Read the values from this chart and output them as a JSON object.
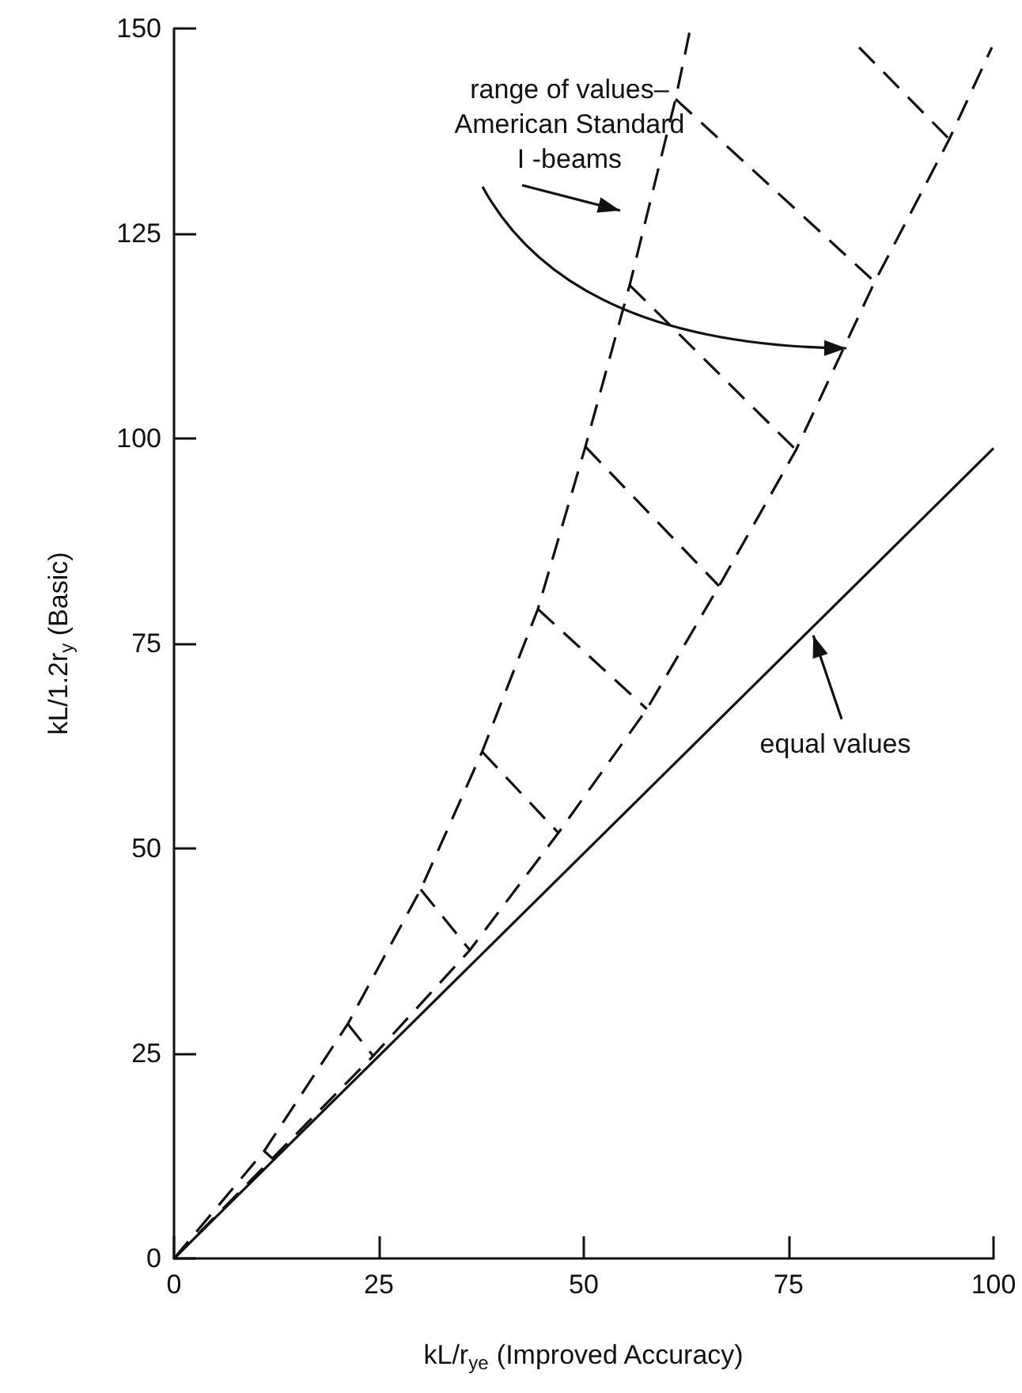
{
  "chart_data": {
    "type": "line",
    "xlabel": "kL/r$_{ye}$ (Improved Accuracy)",
    "ylabel": "kL/1.2r$_{y}$ (Basic)",
    "xlim": [
      0,
      100
    ],
    "xticks": [
      0,
      25,
      50,
      75,
      100
    ],
    "ylim": [
      0,
      150
    ],
    "yticks": [
      0,
      25,
      50,
      75,
      100,
      125,
      150
    ],
    "grid": false,
    "marker": "none",
    "series": [
      {
        "color": "#111111",
        "line_style": "solid",
        "x": [
          0,
          100
        ],
        "values": [
          0,
          98.8
        ]
      },
      {
        "color": "#111111",
        "line_style": "dashed",
        "x": [
          0,
          11,
          21.2,
          30.1,
          37.6,
          44.4,
          50.2,
          55.6,
          61.2,
          63
        ],
        "values": [
          0,
          13.1,
          28.6,
          45,
          61.8,
          79.2,
          99,
          118.7,
          141.4,
          150
        ]
      },
      {
        "color": "#111111",
        "line_style": "dashed",
        "x": [
          0,
          12,
          24.3,
          36.1,
          46.9,
          57.7,
          66.5,
          75.9,
          85.5,
          94.6,
          99.8
        ],
        "values": [
          0,
          12.2,
          24.7,
          37.6,
          51.9,
          67,
          82,
          98.6,
          119.1,
          136.5,
          147.7
        ]
      },
      {
        "color": "#111111",
        "line_style": "dashed",
        "x": [
          11,
          12,
          null,
          21.2,
          24.3,
          null,
          30.1,
          36.1,
          null,
          37.6,
          46.9,
          null,
          44.4,
          57.7,
          null,
          50.2,
          66.5,
          null,
          55.6,
          75.9,
          null,
          61.2,
          85.5,
          null,
          83.6,
          94.6
        ],
        "values": [
          13.1,
          12.2,
          null,
          28.6,
          24.7,
          null,
          45,
          37.6,
          null,
          61.8,
          51.9,
          null,
          79.2,
          67,
          null,
          99,
          82,
          null,
          118.7,
          98.6,
          null,
          141.4,
          119.1,
          null,
          147.7,
          136.5
        ]
      }
    ],
    "annotations": [
      "range of values–\nAmerican Standard\nI -beams",
      {
        "text": "equal values",
        "x": 78,
        "y": 76
      }
    ]
  }
}
